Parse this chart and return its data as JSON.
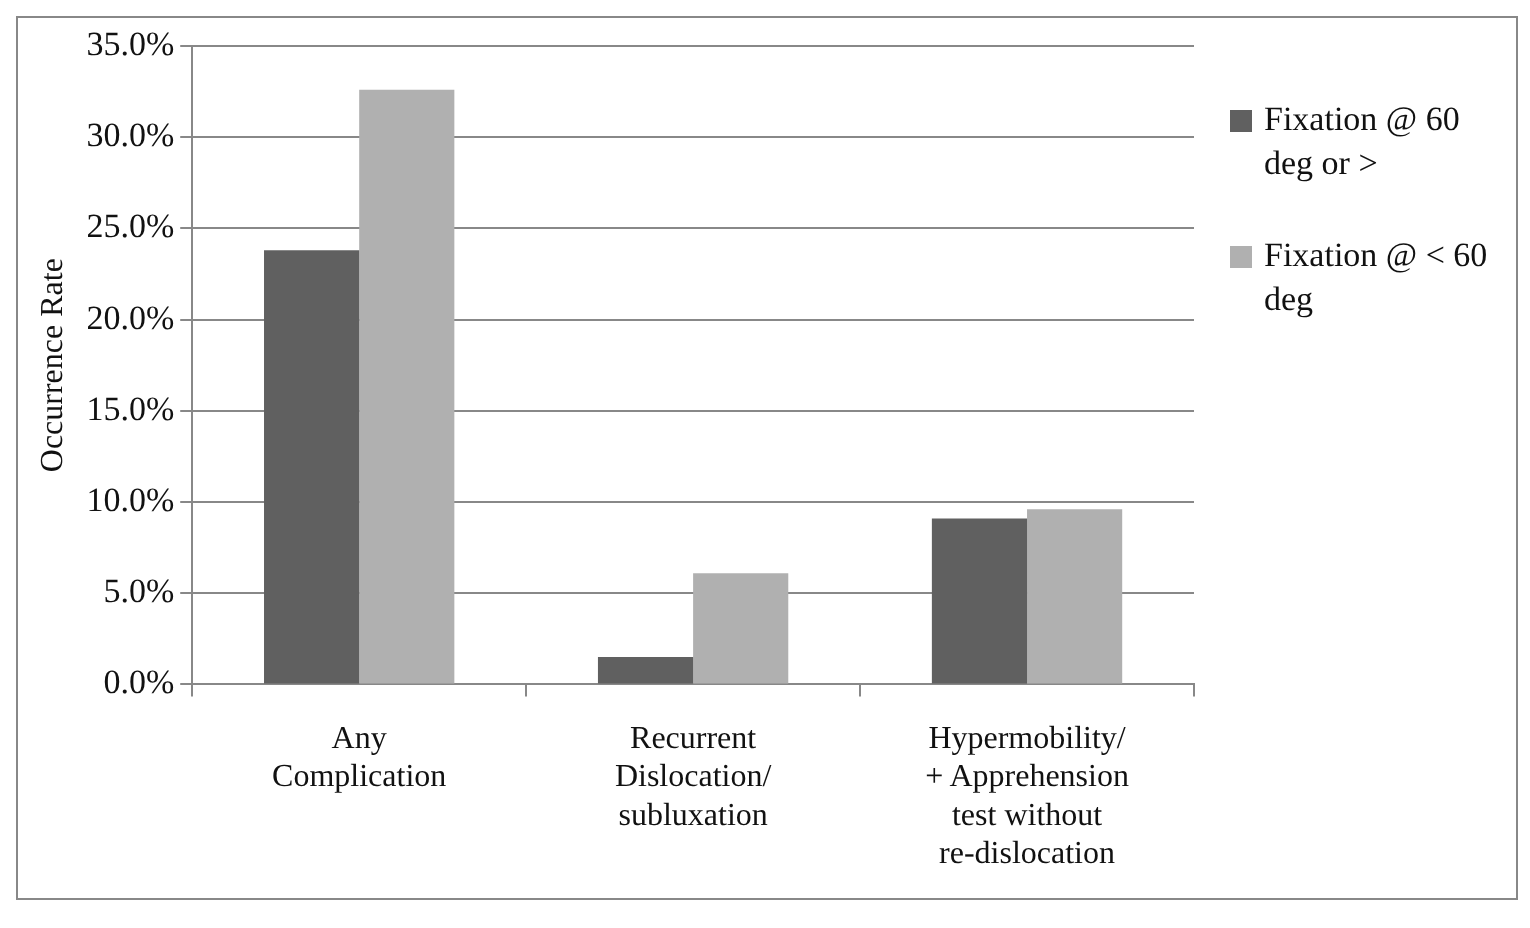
{
  "chart_data": {
    "type": "bar",
    "ylabel": "Occurrence Rate",
    "categories": [
      "Any Complication",
      "Recurrent Dislocation/ subluxation",
      "Hypermobility/ + Apprehension test without re-dislocation"
    ],
    "series": [
      {
        "name": "Fixation @ 60 deg or >",
        "color": "#606060",
        "values": [
          23.8,
          1.5,
          9.1
        ]
      },
      {
        "name": "Fixation @ < 60 deg",
        "color": "#b0b0b0",
        "values": [
          32.6,
          6.1,
          9.6
        ]
      }
    ],
    "ylim": [
      0,
      35
    ],
    "yticks": [
      {
        "value": 0,
        "label": "0.0%"
      },
      {
        "value": 5,
        "label": "5.0%"
      },
      {
        "value": 10,
        "label": "10.0%"
      },
      {
        "value": 15,
        "label": "15.0%"
      },
      {
        "value": 20,
        "label": "20.0%"
      },
      {
        "value": 25,
        "label": "25.0%"
      },
      {
        "value": 30,
        "label": "30.0%"
      },
      {
        "value": 35,
        "label": "35.0%"
      }
    ],
    "grid": "y",
    "legend": "right"
  }
}
